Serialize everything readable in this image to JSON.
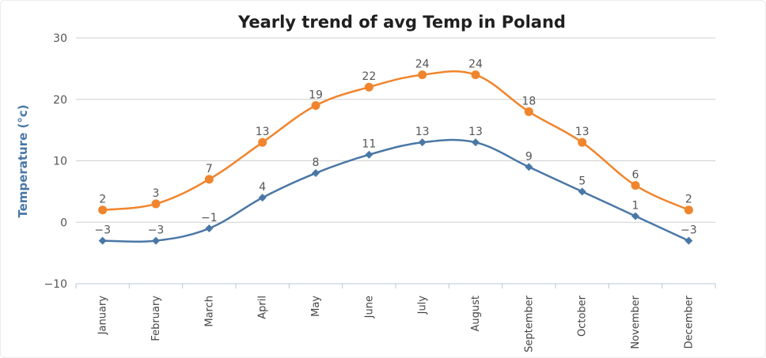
{
  "chart_data": {
    "type": "line",
    "title": "Yearly trend of avg Temp in Poland",
    "xlabel": "",
    "ylabel": "Temperature (°c)",
    "ylim": [
      -10,
      30
    ],
    "yticks": [
      -10,
      0,
      10,
      20,
      30
    ],
    "ytick_labels": [
      "−10",
      "0",
      "10",
      "20",
      "30"
    ],
    "grid": true,
    "legend": "none",
    "categories": [
      "January",
      "February",
      "March",
      "April",
      "May",
      "June",
      "July",
      "August",
      "September",
      "October",
      "November",
      "December"
    ],
    "series": [
      {
        "color": "#f0852d",
        "marker": "circle",
        "values": [
          2,
          3,
          7,
          13,
          19,
          22,
          24,
          24,
          18,
          13,
          6,
          2
        ],
        "labels": [
          "2",
          "3",
          "7",
          "13",
          "19",
          "22",
          "24",
          "24",
          "18",
          "13",
          "6",
          "2"
        ]
      },
      {
        "color": "#4a77a6",
        "marker": "diamond",
        "values": [
          -3,
          -3,
          -1,
          4,
          8,
          11,
          13,
          13,
          9,
          5,
          1,
          -3
        ],
        "labels": [
          "−3",
          "−3",
          "−1",
          "4",
          "8",
          "11",
          "13",
          "13",
          "9",
          "5",
          "1",
          "−3"
        ]
      }
    ]
  }
}
